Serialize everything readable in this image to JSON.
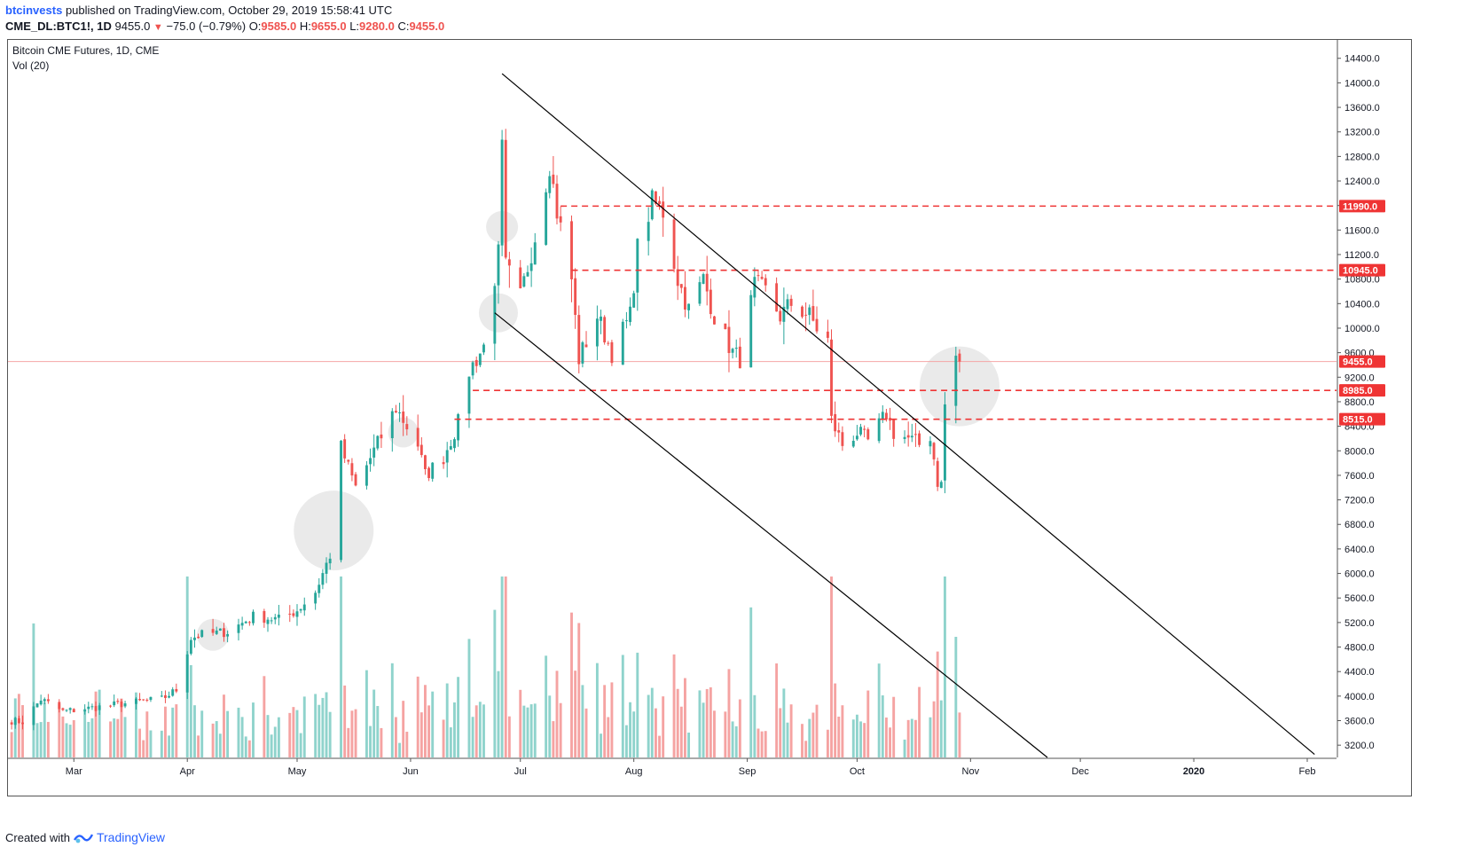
{
  "header": {
    "author": "btcinvests",
    "published": "published on TradingView.com, October 29, 2019 15:58:41 UTC",
    "symbol": "CME_DL:BTC1!, 1D",
    "last": "9455.0",
    "change": "−75.0 (−0.79%)",
    "o_label": "O:",
    "o_value": "9585.0",
    "h_label": "H:",
    "h_value": "9655.0",
    "l_label": "L:",
    "l_value": "9280.0",
    "c_label": "C:",
    "c_value": "9455.0"
  },
  "footer": {
    "created_with": "Created with",
    "brand": "TradingView"
  },
  "colors": {
    "up": "#26a69a",
    "down": "#ef5350",
    "vol_up": "#8fd3cc",
    "vol_down": "#f5a3a2",
    "level": "#ef3434",
    "trend": "#000000"
  },
  "chart_data": {
    "type": "candlestick",
    "title": "Bitcoin CME Futures, 1D, CME",
    "subtitle": "Vol (20)",
    "ylim": [
      3000,
      14700
    ],
    "y_ticks": [
      3200,
      3600,
      4000,
      4400,
      4800,
      5200,
      5600,
      6000,
      6400,
      6800,
      7200,
      7600,
      8000,
      8400,
      8800,
      9200,
      9600,
      10000,
      10400,
      10800,
      11200,
      11600,
      12000,
      12400,
      12800,
      13200,
      13600,
      14000,
      14400
    ],
    "x_ticks": [
      {
        "label": "Mar",
        "date": "2019-03-01"
      },
      {
        "label": "Apr",
        "date": "2019-04-01"
      },
      {
        "label": "May",
        "date": "2019-05-01"
      },
      {
        "label": "Jun",
        "date": "2019-06-01"
      },
      {
        "label": "Jul",
        "date": "2019-07-01"
      },
      {
        "label": "Aug",
        "date": "2019-08-01"
      },
      {
        "label": "Sep",
        "date": "2019-09-01"
      },
      {
        "label": "Oct",
        "date": "2019-10-01"
      },
      {
        "label": "Nov",
        "date": "2019-11-01"
      },
      {
        "label": "Dec",
        "date": "2019-12-01"
      },
      {
        "label": "2020",
        "date": "2020-01-01"
      },
      {
        "label": "Feb",
        "date": "2020-02-01"
      }
    ],
    "price_key_points": [
      [
        "2019-02-12",
        3600
      ],
      [
        "2019-02-15",
        3580
      ],
      [
        "2019-02-20",
        3950
      ],
      [
        "2019-02-26",
        3750
      ],
      [
        "2019-03-05",
        3800
      ],
      [
        "2019-03-15",
        3880
      ],
      [
        "2019-03-25",
        3950
      ],
      [
        "2019-03-29",
        4100
      ],
      [
        "2019-04-02",
        4950
      ],
      [
        "2019-04-05",
        5000
      ],
      [
        "2019-04-12",
        5050
      ],
      [
        "2019-04-19",
        5300
      ],
      [
        "2019-04-26",
        5250
      ],
      [
        "2019-05-01",
        5400
      ],
      [
        "2019-05-06",
        5700
      ],
      [
        "2019-05-10",
        6300
      ],
      [
        "2019-05-13",
        8050
      ],
      [
        "2019-05-17",
        7400
      ],
      [
        "2019-05-22",
        8000
      ],
      [
        "2019-05-28",
        8700
      ],
      [
        "2019-06-03",
        8100
      ],
      [
        "2019-06-05",
        7600
      ],
      [
        "2019-06-10",
        7900
      ],
      [
        "2019-06-14",
        8450
      ],
      [
        "2019-06-17",
        9300
      ],
      [
        "2019-06-21",
        9700
      ],
      [
        "2019-06-25",
        11200
      ],
      [
        "2019-06-26",
        12900
      ],
      [
        "2019-06-27",
        11000
      ],
      [
        "2019-07-01",
        10500
      ],
      [
        "2019-07-05",
        11500
      ],
      [
        "2019-07-09",
        12700
      ],
      [
        "2019-07-11",
        11900
      ],
      [
        "2019-07-15",
        10800
      ],
      [
        "2019-07-17",
        9500
      ],
      [
        "2019-07-22",
        10200
      ],
      [
        "2019-07-26",
        9600
      ],
      [
        "2019-07-31",
        10200
      ],
      [
        "2019-08-02",
        11300
      ],
      [
        "2019-08-06",
        12050
      ],
      [
        "2019-08-09",
        11900
      ],
      [
        "2019-08-13",
        10800
      ],
      [
        "2019-08-16",
        10300
      ],
      [
        "2019-08-20",
        10800
      ],
      [
        "2019-08-23",
        10200
      ],
      [
        "2019-08-28",
        9600
      ],
      [
        "2019-08-30",
        9500
      ],
      [
        "2019-09-03",
        10700
      ],
      [
        "2019-09-06",
        10600
      ],
      [
        "2019-09-10",
        10200
      ],
      [
        "2019-09-13",
        10400
      ],
      [
        "2019-09-18",
        10200
      ],
      [
        "2019-09-20",
        10000
      ],
      [
        "2019-09-23",
        9800
      ],
      [
        "2019-09-24",
        8500
      ],
      [
        "2019-09-27",
        8100
      ],
      [
        "2019-10-01",
        8300
      ],
      [
        "2019-10-04",
        8150
      ],
      [
        "2019-10-09",
        8600
      ],
      [
        "2019-10-11",
        8300
      ],
      [
        "2019-10-15",
        8200
      ],
      [
        "2019-10-18",
        8100
      ],
      [
        "2019-10-21",
        8250
      ],
      [
        "2019-10-23",
        7500
      ],
      [
        "2019-10-24",
        7450
      ],
      [
        "2019-10-25",
        8750
      ],
      [
        "2019-10-28",
        9530
      ],
      [
        "2019-10-29",
        9455
      ]
    ],
    "last_candle": {
      "date": "2019-10-29",
      "open": 9585.0,
      "high": 9655.0,
      "low": 9280.0,
      "close": 9455.0
    },
    "volume": {
      "max_approx": 140000
    },
    "levels": [
      {
        "value": 11990.0,
        "label": "11990.0",
        "start": "2019-07-12"
      },
      {
        "value": 10945.0,
        "label": "10945.0",
        "start": "2019-07-15"
      },
      {
        "value": 8985.0,
        "label": "8985.0",
        "start": "2019-06-18"
      },
      {
        "value": 8515.0,
        "label": "8515.0",
        "start": "2019-06-13"
      }
    ],
    "last_price_label": "9455.0",
    "trendlines": [
      {
        "from": [
          "2019-06-26",
          14150
        ],
        "to": [
          "2020-02-03",
          3050
        ]
      },
      {
        "from": [
          "2019-06-24",
          10250
        ],
        "to": [
          "2019-11-22",
          3000
        ]
      }
    ],
    "highlights": [
      {
        "date": "2019-04-08",
        "price": 5000
      },
      {
        "date": "2019-05-11",
        "price": 6700
      },
      {
        "date": "2019-05-30",
        "price": 8300
      },
      {
        "date": "2019-06-26",
        "price": 11650
      },
      {
        "date": "2019-06-25",
        "price": 10250
      },
      {
        "date": "2019-10-29",
        "price": 9050
      }
    ]
  }
}
